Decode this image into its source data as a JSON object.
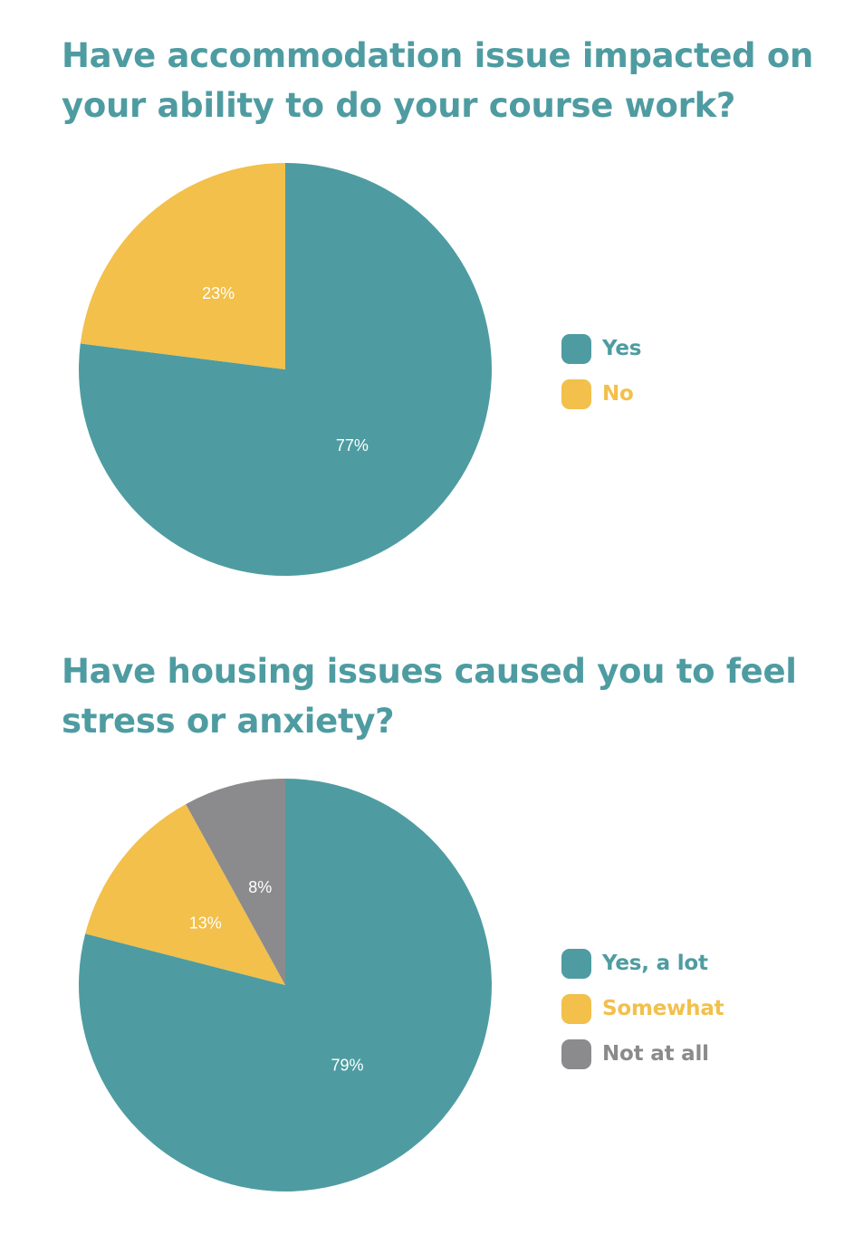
{
  "colors": {
    "title": "#4e9ca1",
    "teal": "#4e9ca1",
    "yellow": "#f2c04b",
    "gray": "#8b8b8d"
  },
  "chart_data": [
    {
      "type": "pie",
      "title": "Have accommodation issue impacted on your ability to do your course work?",
      "slices": [
        {
          "label": "Yes",
          "value": 77,
          "display": "77%",
          "color": "#4e9ca1"
        },
        {
          "label": "No",
          "value": 23,
          "display": "23%",
          "color": "#f2c04b"
        }
      ],
      "legend_position": "right"
    },
    {
      "type": "pie",
      "title": "Have housing issues caused you to feel stress or anxiety?",
      "slices": [
        {
          "label": "Yes, a lot",
          "value": 79,
          "display": "79%",
          "color": "#4e9ca1"
        },
        {
          "label": "Somewhat",
          "value": 13,
          "display": "13%",
          "color": "#f2c04b"
        },
        {
          "label": "Not at all",
          "value": 8,
          "display": "8%",
          "color": "#8b8b8d"
        }
      ],
      "legend_position": "right"
    }
  ]
}
